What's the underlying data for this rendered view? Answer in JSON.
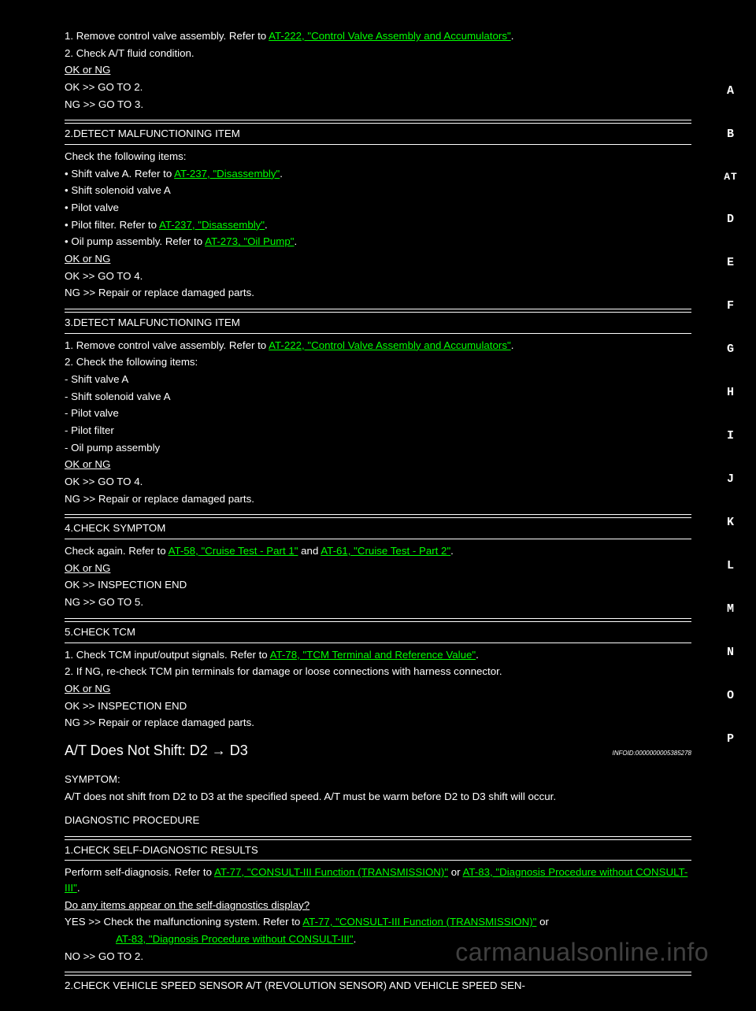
{
  "sidebar": {
    "items": [
      "A",
      "B",
      "AT",
      "D",
      "E",
      "F",
      "G",
      "H",
      "I",
      "J",
      "K",
      "L",
      "M",
      "N",
      "O",
      "P"
    ],
    "active_index": 2
  },
  "links": {
    "l222": "AT-222, \"Control Valve Assembly and Accumulators\"",
    "l237": "AT-237, \"Disassembly\"",
    "l273": "AT-273, \"Oil Pump\"",
    "l58": "AT-58, \"Cruise Test - Part 1\"",
    "l61": "AT-61, \"Cruise Test - Part 2\"",
    "l78": "AT-78, \"TCM Terminal and Reference Value\"",
    "l77": "AT-77, \"CONSULT-III Function (TRANSMISSION)\"",
    "l83": "AT-83, \"Diagnosis Procedure without CONSULT-III\"",
    "l83b": "AT-83, \"Diagnosis Procedure without CONSULT-III\""
  },
  "t": {
    "s1_l1a": "1. Remove control valve assembly. Refer to ",
    "s1_l1b": ".",
    "s1_l2": "2. Check A/T fluid condition.",
    "s1_ok": "OK or NG",
    "s1_ok_arrow": "OK >> GO TO 2.",
    "s1_ng_arrow": "NG >> GO TO 3.",
    "h2": "2.DETECT MALFUNCTIONING ITEM",
    "s2_l1": "Check the following items:",
    "s2_b1a": "• Shift valve A. Refer to ",
    "s2_b1b": ".",
    "s2_b2": "• Shift solenoid valve A",
    "s2_b3": "• Pilot valve",
    "s2_b4a": "• Pilot filter. Refer to ",
    "s2_b4b": ".",
    "s2_b5a": "• Oil pump assembly. Refer to ",
    "s2_b5b": ".",
    "s2_ok": "OK or NG",
    "s2_ok_arrow": "OK >> GO TO 4.",
    "s2_ng_arrow": "NG >> Repair or replace damaged parts.",
    "h3": "3.DETECT MALFUNCTIONING ITEM",
    "s3_l1a": "1. Remove control valve assembly. Refer to ",
    "s3_l1b": ".",
    "s3_l2": "2. Check the following items:",
    "s3_b1": "- Shift valve A",
    "s3_b2": "- Shift solenoid valve A",
    "s3_b3": "- Pilot valve",
    "s3_b4": "- Pilot filter",
    "s3_b5": "- Oil pump assembly",
    "s3_ok": "OK or NG",
    "s3_ok_arrow": "OK >> GO TO 4.",
    "s3_ng_arrow": "NG >> Repair or replace damaged parts.",
    "h4": "4.CHECK SYMPTOM",
    "s4_l1a": "Check again. Refer to ",
    "s4_l1b": " and ",
    "s4_l1c": ".",
    "s4_ok": "OK or NG",
    "s4_ok_arrow": "OK >> INSPECTION END",
    "s4_ng_arrow": "NG >> GO TO 5.",
    "h5": "5.CHECK TCM",
    "s5_l1a": "1. Check TCM input/output signals. Refer to ",
    "s5_l1b": ".",
    "s5_l2": "2. If NG, re-check TCM pin terminals for damage or loose connections with harness connector.",
    "s5_ok": "OK or NG",
    "s5_ok_arrow": "OK >> INSPECTION END",
    "s5_ng_arrow": "NG >> Repair or replace damaged parts.",
    "title": "A/T Does Not Shift: D2 → D3",
    "infoid": "INFOID:0000000005385278",
    "sym_h": "SYMPTOM:",
    "sym_b": "A/T does not shift from D2 to D3 at the specified speed. A/T must be warm before D2 to D3 shift will occur.",
    "dp_h": "DIAGNOSTIC PROCEDURE",
    "d1_h": "1.CHECK SELF-DIAGNOSTIC RESULTS",
    "d1_l1a": "Perform self-diagnosis. Refer to ",
    "d1_l1b": " or ",
    "d1_q": "Do any items appear on the self-diagnostics display?",
    "d1_yesa": "YES >> Check the malfunctioning system. Refer to ",
    "d1_yesb": " or",
    "d1_yes2b": ".",
    "d1_no": "NO >> GO TO 2.",
    "d2_h": "2.CHECK VEHICLE SPEED SENSOR A/T (REVOLUTION SENSOR) AND VEHICLE SPEED SEN-"
  },
  "watermark": "carmanualsonline.info"
}
